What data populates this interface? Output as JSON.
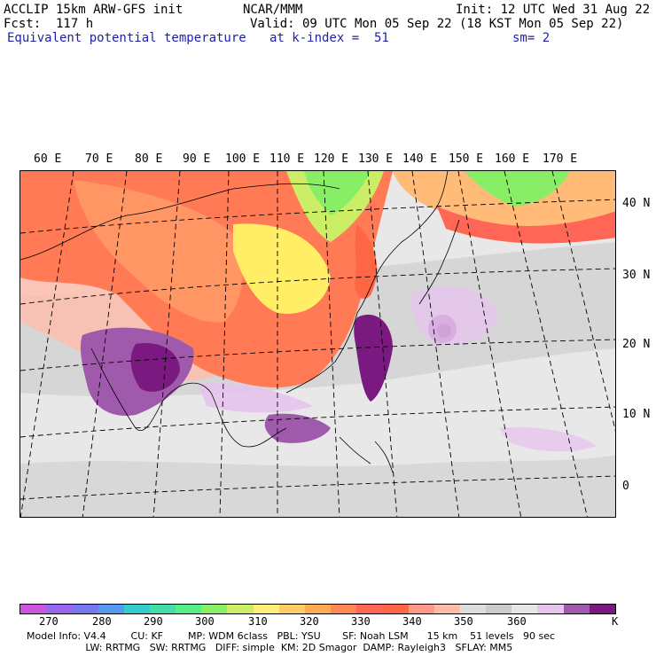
{
  "header": {
    "model": "ACCLIP 15km ARW-GFS init",
    "center": "NCAR/MMM",
    "init": "Init: 12 UTC Wed 31 Aug 22",
    "fcst": "Fcst:  117 h",
    "valid": "Valid: 09 UTC Mon 05 Sep 22 (18 KST Mon 05 Sep 22)",
    "field": "Equivalent potential temperature",
    "level": "at k-index =  51",
    "smooth": "sm= 2"
  },
  "lon_labels": [
    "60 E",
    "70 E",
    "80 E",
    "90 E",
    "100 E",
    "110 E",
    "120 E",
    "130 E",
    "140 E",
    "150 E",
    "160 E",
    "170 E"
  ],
  "lat_labels": [
    "40 N",
    "30 N",
    "20 N",
    "10 N",
    "0"
  ],
  "colorbar": {
    "colors": [
      "#cc55dd",
      "#9966ee",
      "#7777ee",
      "#5599ee",
      "#33cccc",
      "#44ddaa",
      "#55ee88",
      "#88ee66",
      "#ccee66",
      "#ffee77",
      "#ffcc66",
      "#ffaa55",
      "#ff8855",
      "#ff6655",
      "#ff6644",
      "#ff9988",
      "#ffbbaa",
      "#dddddd",
      "#cccccc",
      "#e6e6e6",
      "#e6c4ee",
      "#a05aac",
      "#7a1a80"
    ],
    "tick_labels": [
      "270",
      "280",
      "290",
      "300",
      "310",
      "320",
      "330",
      "340",
      "350",
      "360"
    ],
    "unit": "K"
  },
  "footer": {
    "line1": "Model Info: V4.4        CU: KF        MP: WDM 6class   PBL: YSU       SF: Noah LSM      15 km    51 levels   90 sec",
    "line2": "                   LW: RRTMG   SW: RRTMG   DIFF: simple  KM: 2D Smagor  DAMP: Rayleigh3   SFLAY: MM5"
  }
}
